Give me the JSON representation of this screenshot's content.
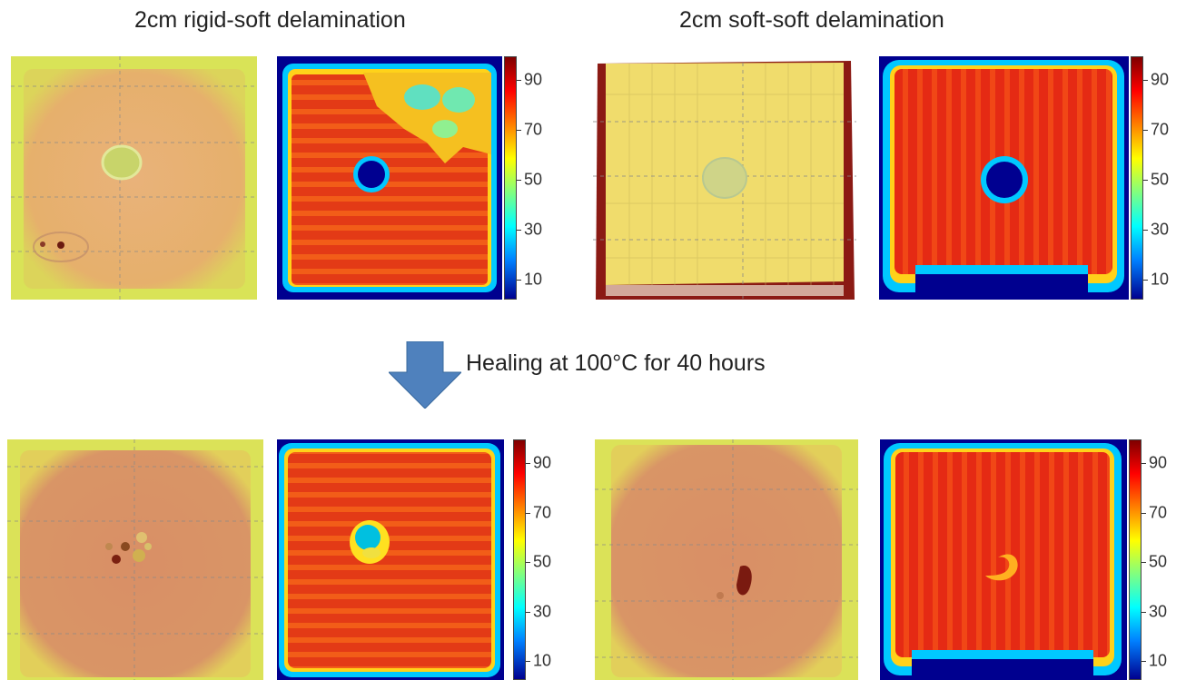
{
  "titles": {
    "left": "2cm rigid-soft delamination",
    "right": "2cm soft-soft delamination"
  },
  "healing_label": "Healing at 100°C for 40 hours",
  "colorbar": {
    "ticks": [
      "90",
      "70",
      "50",
      "30",
      "10"
    ],
    "colormap": "jet"
  },
  "colors": {
    "optical_before": "#e8b26a",
    "optical_after": "#d9946a",
    "optical_border": "#d6e84a",
    "heatmap_high": "#e8281a",
    "heatmap_low": "#00008f",
    "arrow": "#4f81bd"
  }
}
